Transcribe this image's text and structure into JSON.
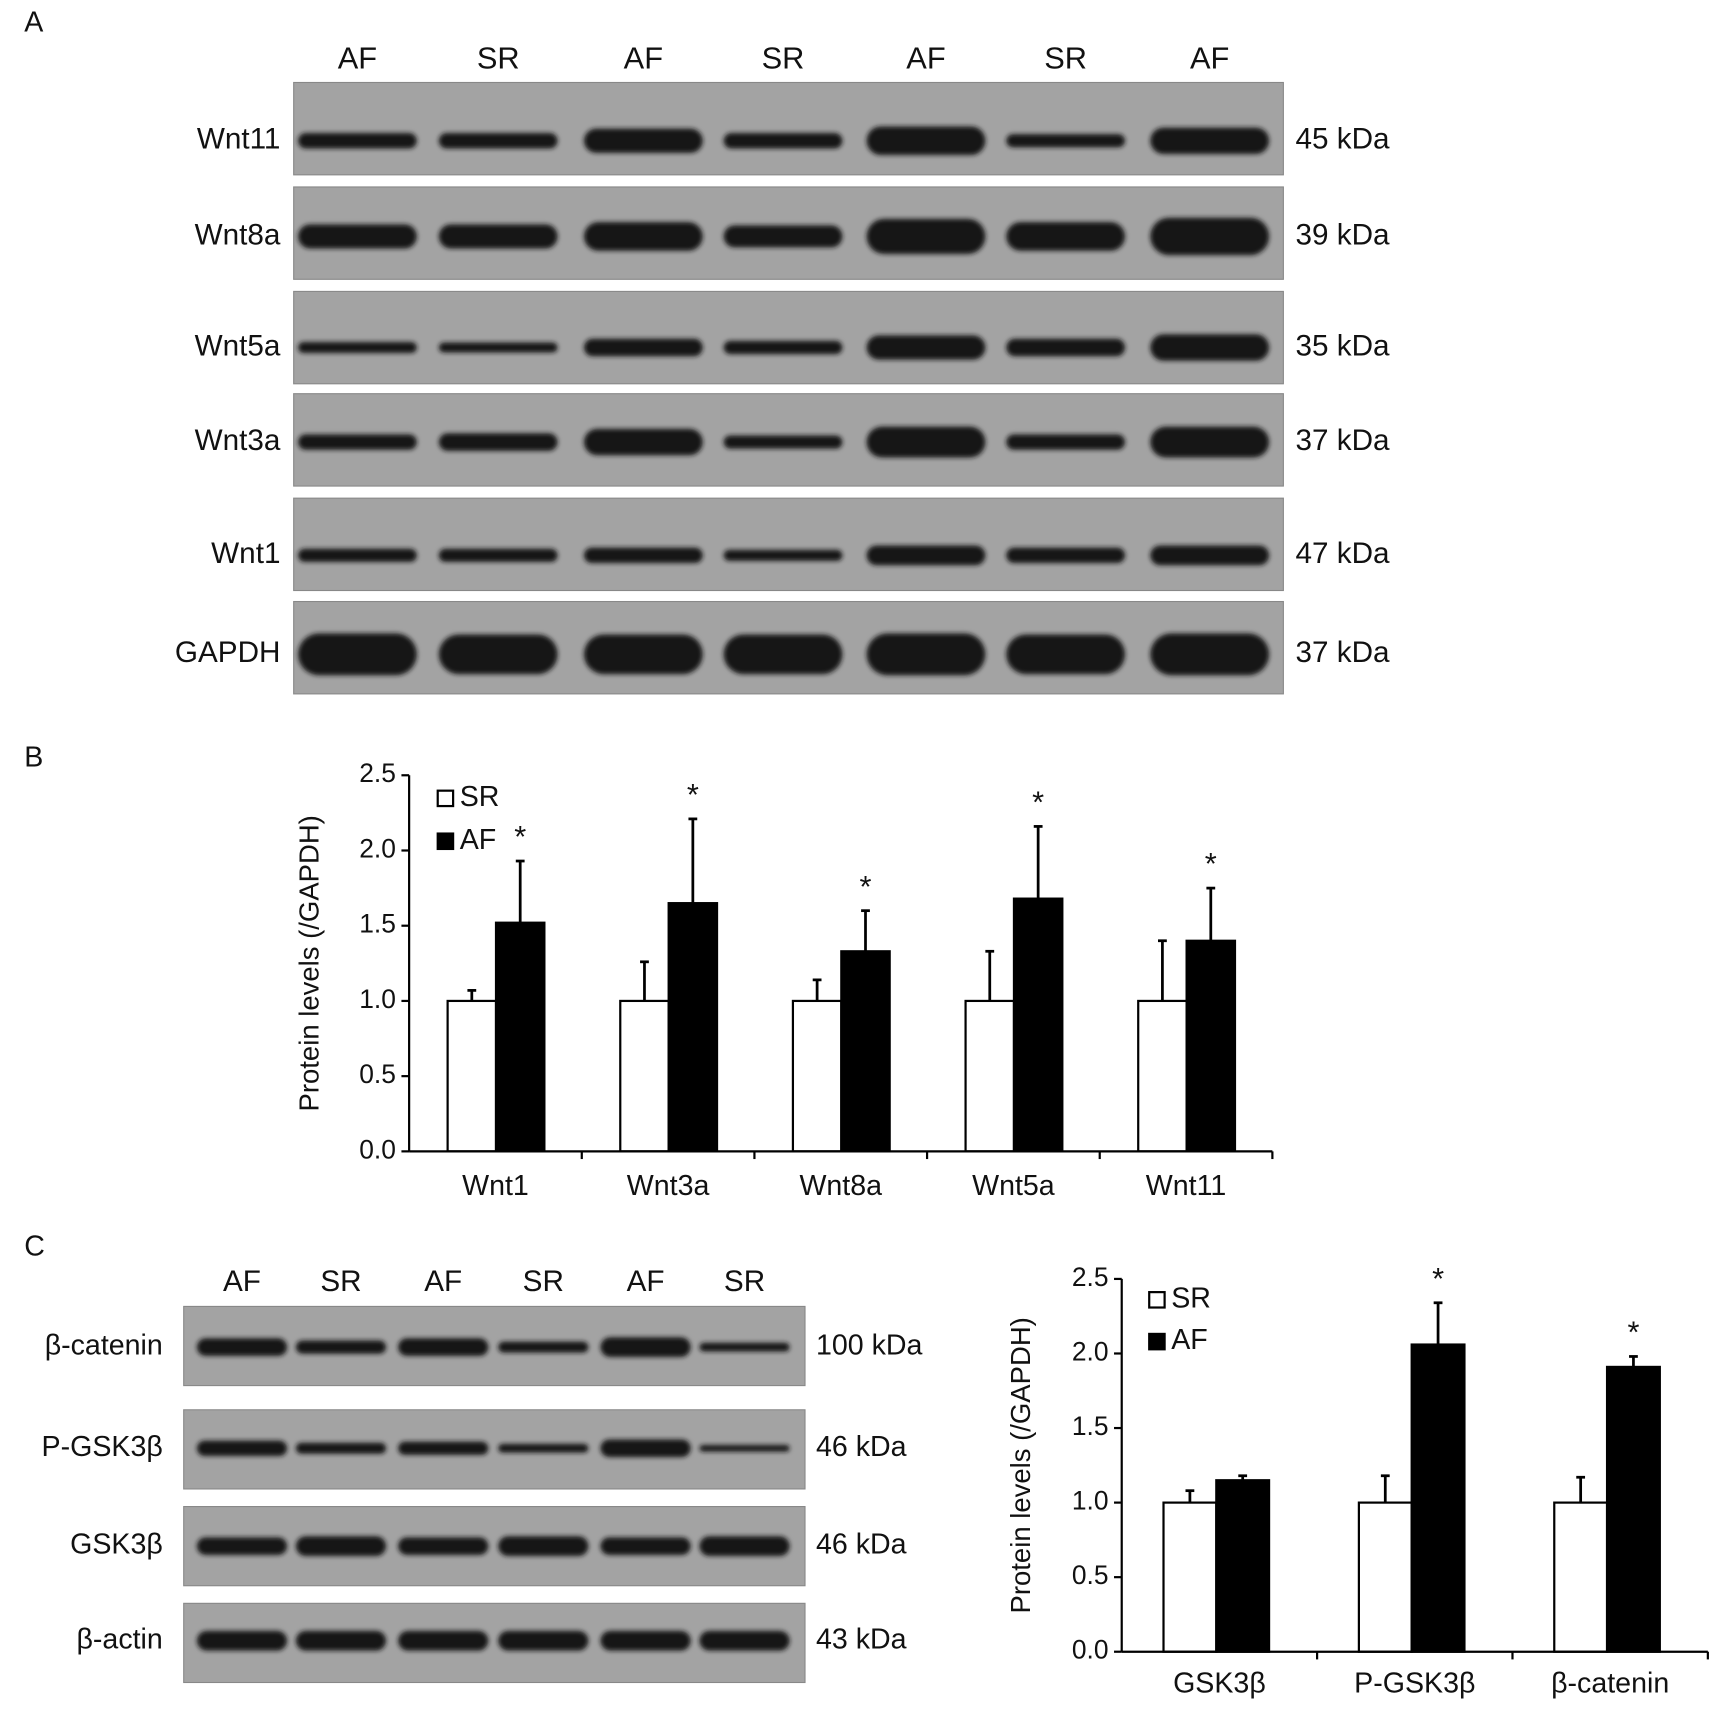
{
  "blots": [
    {
      "panel_label": "A",
      "lanes": [
        "AF",
        "SR",
        "AF",
        "SR",
        "AF",
        "SR",
        "AF"
      ],
      "rows": [
        {
          "protein": "Wnt11",
          "size": "45 kDa"
        },
        {
          "protein": "Wnt8a",
          "size": "39 kDa"
        },
        {
          "protein": "Wnt5a",
          "size": "35 kDa"
        },
        {
          "protein": "Wnt3a",
          "size": "37 kDa"
        },
        {
          "protein": "Wnt1",
          "size": "47 kDa"
        },
        {
          "protein": "GAPDH",
          "size": "37 kDa"
        }
      ]
    },
    {
      "panel_label": "C",
      "lanes": [
        "AF",
        "SR",
        "AF",
        "SR",
        "AF",
        "SR"
      ],
      "rows": [
        {
          "protein": "β-catenin",
          "size": "100 kDa"
        },
        {
          "protein": "P-GSK3β",
          "size": "46 kDa"
        },
        {
          "protein": "GSK3β",
          "size": "46 kDa"
        },
        {
          "protein": "β-actin",
          "size": "43 kDa"
        }
      ]
    }
  ],
  "chart_data": [
    {
      "type": "bar",
      "panel_label": "B",
      "y_label": "Protein levels (/GAPDH)",
      "categories": [
        "Wnt1",
        "Wnt3a",
        "Wnt8a",
        "Wnt5a",
        "Wnt11"
      ],
      "series": [
        {
          "name": "SR",
          "color": "#ffffff",
          "values": [
            1,
            1,
            1,
            1,
            1
          ],
          "errors": [
            0.07,
            0.26,
            0.14,
            0.33,
            0.4
          ]
        },
        {
          "name": "AF",
          "color": "#000000",
          "values": [
            1.52,
            1.65,
            1.33,
            1.68,
            1.4
          ],
          "errors": [
            0.41,
            0.56,
            0.27,
            0.48,
            0.35
          ],
          "significance": [
            "*",
            "*",
            "*",
            "*",
            "*"
          ]
        }
      ],
      "ylim": [
        0,
        2.5
      ],
      "yticks": [
        {
          "value": 0,
          "label": "0.0"
        },
        {
          "value": 0.5,
          "label": "0.5"
        },
        {
          "value": 1,
          "label": "1.0"
        },
        {
          "value": 1.5,
          "label": "1.5"
        },
        {
          "value": 2,
          "label": "2.0"
        },
        {
          "value": 2.5,
          "label": "2.5"
        }
      ],
      "legend": "upper left"
    },
    {
      "type": "bar",
      "y_label": "Protein levels (/GAPDH)",
      "categories": [
        "GSK3β",
        "P-GSK3β",
        "β-catenin"
      ],
      "series": [
        {
          "name": "SR",
          "color": "#ffffff",
          "values": [
            1,
            1,
            1
          ],
          "errors": [
            0.08,
            0.18,
            0.17
          ]
        },
        {
          "name": "AF",
          "color": "#000000",
          "values": [
            1.15,
            2.06,
            1.91
          ],
          "errors": [
            0.03,
            0.28,
            0.07
          ],
          "significance": [
            null,
            "*",
            "*"
          ]
        }
      ],
      "ylim": [
        0,
        2.5
      ],
      "yticks": [
        {
          "value": 0,
          "label": "0.0"
        },
        {
          "value": 0.5,
          "label": "0.5"
        },
        {
          "value": 1,
          "label": "1.0"
        },
        {
          "value": 1.5,
          "label": "1.5"
        },
        {
          "value": 2,
          "label": "2.0"
        },
        {
          "value": 2.5,
          "label": "2.5"
        }
      ],
      "legend": "upper left"
    }
  ]
}
